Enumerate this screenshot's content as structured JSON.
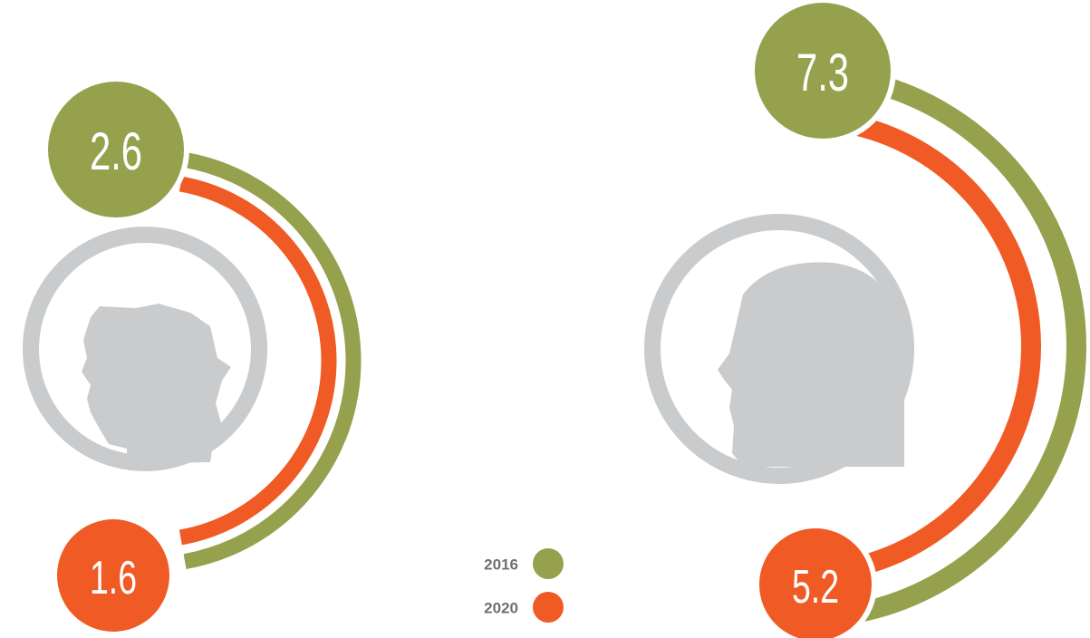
{
  "chart_data": {
    "type": "arc",
    "series": [
      {
        "name": "2016",
        "color": "#96a14e",
        "values": [
          2.6,
          7.3
        ]
      },
      {
        "name": "2020",
        "color": "#f05a24",
        "values": [
          1.6,
          5.2
        ]
      }
    ]
  }
}
